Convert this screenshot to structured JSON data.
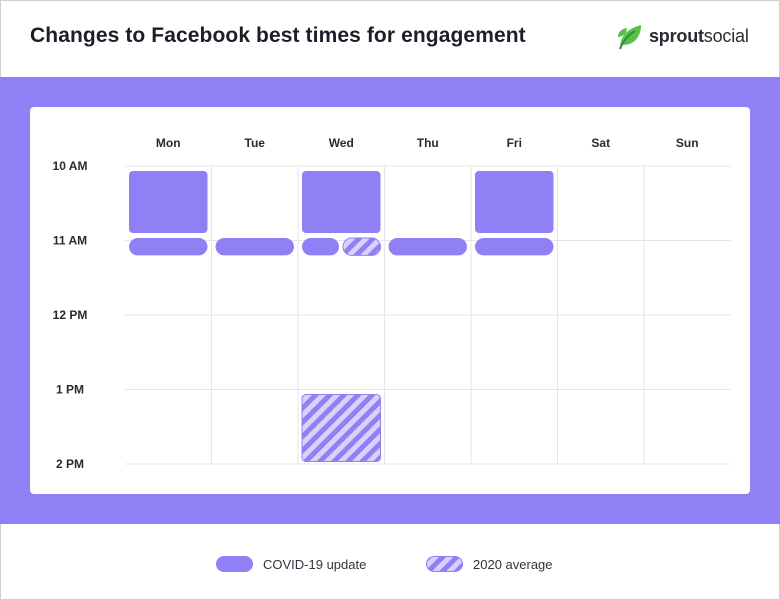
{
  "header": {
    "title": "Changes to Facebook best times for engagement",
    "logo_brand": "sprout",
    "logo_brand_rest": "social",
    "logo_icon": "sprout-leaf-icon"
  },
  "colors": {
    "band": "#9080f5",
    "block": "#9080f5",
    "stripe_dark": "#9080f5",
    "stripe_light": "#d8d2fb",
    "grid": "#e4e4ea",
    "logo_green": "#59c14a",
    "logo_green_dark": "#2f8f3a"
  },
  "legend": {
    "items": [
      {
        "label": "COVID-19 update",
        "pattern": "solid"
      },
      {
        "label": "2020 average",
        "pattern": "hatched"
      }
    ]
  },
  "chart_data": {
    "type": "heatmap",
    "title": "Changes to Facebook best times for engagement",
    "x_categories": [
      "Mon",
      "Tue",
      "Wed",
      "Thu",
      "Fri",
      "Sat",
      "Sun"
    ],
    "y_ticks": [
      "10 AM",
      "11 AM",
      "12 PM",
      "1 PM",
      "2 PM"
    ],
    "y_range_hours": [
      10,
      14
    ],
    "grid": true,
    "legend_position": "bottom",
    "series": [
      {
        "name": "COVID-19 update",
        "pattern": "solid",
        "slots": [
          {
            "day": "Mon",
            "start": 10.0,
            "end": 10.833
          },
          {
            "day": "Wed",
            "start": 10.0,
            "end": 10.833
          },
          {
            "day": "Fri",
            "start": 10.0,
            "end": 10.833
          },
          {
            "day": "Mon",
            "start": 10.9,
            "end": 11.133
          },
          {
            "day": "Tue",
            "start": 10.9,
            "end": 11.133
          },
          {
            "day": "Wed",
            "start": 10.9,
            "end": 11.133,
            "part": "left"
          },
          {
            "day": "Thu",
            "start": 10.9,
            "end": 11.133
          },
          {
            "day": "Fri",
            "start": 10.9,
            "end": 11.133
          }
        ]
      },
      {
        "name": "2020 average",
        "pattern": "hatched",
        "slots": [
          {
            "day": "Wed",
            "start": 10.9,
            "end": 11.133,
            "part": "right"
          },
          {
            "day": "Wed",
            "start": 13.0,
            "end": 13.9
          }
        ]
      }
    ]
  }
}
